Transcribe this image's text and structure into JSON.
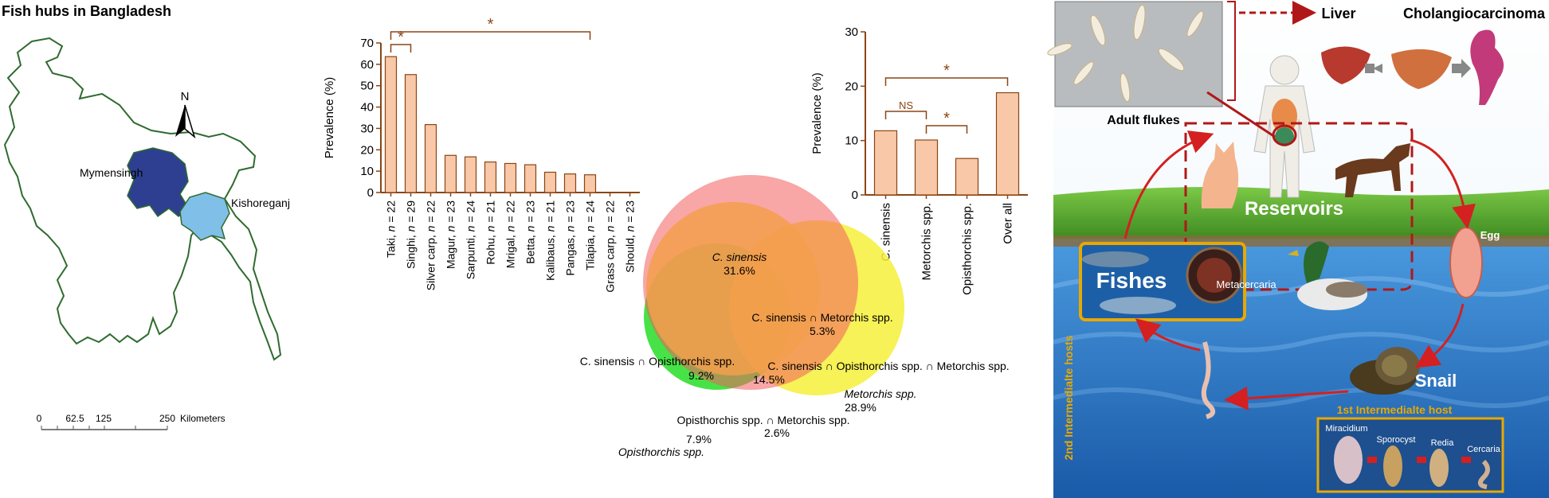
{
  "map": {
    "title": "Fish hubs in Bangladesh",
    "north": "N",
    "labels": [
      "Mymensingh",
      "Kishoreganj"
    ],
    "scale": {
      "ticks": [
        "0",
        "62.5",
        "125",
        "250"
      ],
      "unit": "Kilometers"
    },
    "colors": {
      "border": "#2f6b2f",
      "mymensingh": "#2e3f91",
      "kishoreganj": "#7fbfe8"
    }
  },
  "chart_data": [
    {
      "type": "bar",
      "ylabel": "Prevalence (%)",
      "ylim": [
        0,
        70
      ],
      "yticks": [
        0,
        10,
        20,
        30,
        40,
        50,
        60,
        70
      ],
      "categories": [
        "Taki, n = 22",
        "Singhi, n = 29",
        "Silver carp, n = 22",
        "Magur, n = 23",
        "Sarpunti, n = 24",
        "Rohu, n = 21",
        "Mrigal, n = 22",
        "Betta, n = 23",
        "Kalibaus, n = 21",
        "Pangas, n = 23",
        "Tilapia, n = 24",
        "Grass carp, n = 22",
        "Should, n = 23"
      ],
      "values": [
        63.6,
        55.2,
        31.8,
        17.4,
        16.7,
        14.3,
        13.6,
        13.0,
        9.5,
        8.7,
        8.3,
        0,
        0
      ],
      "annotations": [
        {
          "from": 0,
          "to": 1,
          "label": "*"
        },
        {
          "from": 0,
          "to": 10,
          "label": "*"
        }
      ],
      "colors": {
        "bar": "#f8c8a8",
        "edge": "#8b4513"
      }
    },
    {
      "type": "bar",
      "ylabel": "Prevalence (%)",
      "ylim": [
        0,
        30
      ],
      "yticks": [
        0,
        10,
        20,
        30
      ],
      "categories": [
        "C. sinensis",
        "Metorchis spp.",
        "Opisthorchis spp.",
        "Over all"
      ],
      "values": [
        11.8,
        10.1,
        6.7,
        18.8
      ],
      "annotations": [
        {
          "from": 0,
          "to": 1,
          "label": "NS"
        },
        {
          "from": 1,
          "to": 2,
          "label": "*"
        },
        {
          "from": 0,
          "to": 3,
          "label": "*"
        }
      ],
      "colors": {
        "bar": "#f8c8a8",
        "edge": "#8b4513"
      }
    }
  ],
  "venn": {
    "regions": [
      {
        "label": "C. sinensis",
        "value": "31.6%"
      },
      {
        "label": "C. sinensis ∩ Metorchis spp.",
        "value": "5.3%"
      },
      {
        "label": "C. sinensis ∩ Opisthorchis spp.",
        "value": "9.2%"
      },
      {
        "label": "C. sinensis ∩ Opisthorchis spp. ∩ Metorchis spp.",
        "value": "14.5%"
      },
      {
        "label": "Metorchis spp.",
        "value": "28.9%"
      },
      {
        "label": "Opisthorchis spp. ∩ Metorchis spp.",
        "value": "2.6%"
      },
      {
        "label": "Opisthorchis spp.",
        "value": "7.9%"
      }
    ],
    "colors": {
      "red": "#f25c5c",
      "yellow": "#f5f03a",
      "green": "#3de03d"
    }
  },
  "lifecycle": {
    "adult_flukes": "Adult flukes",
    "liver": "Liver",
    "cholangio": "Cholangiocarcinoma",
    "reservoirs": "Reservoirs",
    "fishes": "Fishes",
    "metacercaria": "Metacercaria",
    "egg": "Egg",
    "snail": "Snail",
    "second_host": "2nd Intermedialte hosts",
    "first_host": "1st Intermedialte host",
    "stages": [
      "Miracidium",
      "Sporocyst",
      "Redia",
      "Cercaria"
    ],
    "colors": {
      "arrow": "#d42020",
      "box": "#e8a800",
      "dash": "#b01818",
      "water": "#2b72c8",
      "grass": "#58a82e"
    }
  }
}
